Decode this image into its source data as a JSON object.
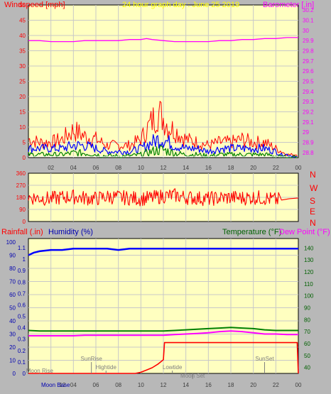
{
  "colors": {
    "background": "#b8b8b8",
    "plot_bg": "#ffffc0",
    "grid": "#c8c8c8",
    "red": "#ff0000",
    "blue": "#0000ff",
    "green": "#008000",
    "magenta": "#ff00ff",
    "white": "#ffffff",
    "title_yellow": "#ffff00",
    "axis_gray": "#808080",
    "text_dark": "#404040",
    "humidity_blue": "#0000b0",
    "temp_green": "#006000"
  },
  "chart_data": [
    {
      "type": "line",
      "title": "24 hour graph day : June 25 2019",
      "left_label": "Windspeed [mph]",
      "right_label": "Barometer [.in]",
      "x_ticks": [
        "02",
        "04",
        "06",
        "08",
        "10",
        "12",
        "14",
        "16",
        "18",
        "20",
        "22",
        "00"
      ],
      "y_left_ticks": [
        "50",
        "45",
        "40",
        "35",
        "30",
        "25",
        "20",
        "15",
        "10",
        "5",
        "0"
      ],
      "y_left_lim": [
        0,
        50
      ],
      "y_right_ticks": [
        "30.2",
        "30.1",
        "30",
        "29.9",
        "29.8",
        "29.7",
        "29.6",
        "29.5",
        "29.4",
        "29.3",
        "29.2",
        "29.1",
        "29",
        "28.9",
        "28.8"
      ],
      "y_right_lim": [
        28.75,
        30.25
      ],
      "grid": true,
      "series": [
        {
          "name": "Windspeed [mph]",
          "color": "#ff0000",
          "kind": "gust",
          "x": [
            0,
            1,
            2,
            3,
            4,
            5,
            6,
            7,
            8,
            9,
            10,
            11,
            11.5,
            12,
            12.5,
            13,
            14,
            15,
            16,
            17,
            18,
            19,
            20,
            21,
            22,
            22.5,
            23,
            24
          ],
          "y": [
            6,
            5,
            5,
            6,
            9,
            7,
            6,
            4,
            4,
            4,
            6,
            12,
            15,
            13,
            10,
            9,
            6,
            5,
            4,
            5,
            5,
            6,
            5,
            5,
            3,
            2,
            1,
            1
          ]
        },
        {
          "name": "Average wind",
          "color": "#0000ff",
          "kind": "average",
          "x": [
            0,
            1,
            2,
            3,
            4,
            5,
            6,
            7,
            8,
            9,
            10,
            11,
            11.5,
            12,
            12.5,
            13,
            14,
            15,
            16,
            17,
            18,
            19,
            20,
            21,
            22,
            22.5,
            23,
            24
          ],
          "y": [
            3,
            3,
            3,
            3,
            4,
            4,
            3,
            2,
            2,
            2,
            3,
            5,
            6,
            6,
            5,
            4,
            3,
            3,
            2,
            3,
            3,
            3,
            3,
            3,
            2,
            1,
            1,
            0
          ]
        },
        {
          "name": "Low wind",
          "color": "#008000",
          "kind": "low",
          "x": [
            0,
            1,
            2,
            3,
            4,
            5,
            6,
            7,
            8,
            9,
            10,
            11,
            11.5,
            12,
            12.5,
            13,
            14,
            15,
            16,
            17,
            18,
            19,
            20,
            21,
            22,
            22.5,
            23,
            24
          ],
          "y": [
            1,
            1,
            1,
            1,
            1.5,
            1.5,
            1,
            0.5,
            0.5,
            0.5,
            1,
            2,
            2.5,
            2.5,
            2,
            1.5,
            1,
            1,
            0.5,
            1,
            1,
            1,
            1,
            1,
            0.5,
            0,
            0,
            0
          ]
        },
        {
          "name": "Barometer [.in]",
          "color": "#ff00ff",
          "axis": "right",
          "x": [
            0,
            1,
            2,
            3,
            4,
            5,
            6,
            7,
            8,
            9,
            10,
            10.5,
            11,
            12,
            13,
            14,
            15,
            16,
            17,
            18,
            19,
            20,
            21,
            22,
            23,
            24
          ],
          "y": [
            29.9,
            29.9,
            29.89,
            29.89,
            29.89,
            29.9,
            29.9,
            29.9,
            29.9,
            29.91,
            29.91,
            29.92,
            29.91,
            29.9,
            29.89,
            29.89,
            29.89,
            29.89,
            29.9,
            29.9,
            29.91,
            29.91,
            29.92,
            29.92,
            29.93,
            29.93
          ]
        }
      ]
    },
    {
      "type": "line",
      "title": "",
      "y_ticks": [
        "360",
        "270",
        "180",
        "90",
        "0"
      ],
      "ylim": [
        0,
        360
      ],
      "compass_labels": [
        "N",
        "W",
        "S",
        "E",
        "N"
      ],
      "grid": true,
      "series": [
        {
          "name": "Wind direction",
          "color": "#ff0000",
          "x": [
            0,
            1,
            2,
            3,
            4,
            5,
            6,
            7,
            8,
            9,
            10,
            11,
            12,
            13,
            14,
            15,
            16,
            17,
            18,
            19,
            20,
            21,
            22,
            23,
            24
          ],
          "y": [
            180,
            175,
            170,
            180,
            185,
            175,
            170,
            185,
            180,
            175,
            170,
            175,
            190,
            195,
            180,
            175,
            170,
            175,
            180,
            175,
            180,
            175,
            160,
            170,
            175
          ]
        }
      ]
    },
    {
      "type": "line",
      "title": "",
      "labels": {
        "rainfall": "Rainfall (.in)",
        "humidity": "Humidity (%)",
        "temperature": "Temperature (°F)",
        "dewpoint": "Dew Point (°F)"
      },
      "x_ticks": [
        "02",
        "04",
        "06",
        "08",
        "10",
        "12",
        "14",
        "16",
        "18",
        "20",
        "22",
        "00"
      ],
      "humidity_ticks": [
        "100",
        "90",
        "80",
        "70",
        "60",
        "50",
        "40",
        "30",
        "20",
        "10",
        "0"
      ],
      "humidity_lim": [
        0,
        100
      ],
      "rain_ticks": [
        "1.1",
        "1",
        "0.9",
        "0.8",
        "0.7",
        "0.6",
        "0.5",
        "0.4",
        "0.3",
        "0.2",
        "0.1",
        "0"
      ],
      "rain_lim": [
        0,
        1.15
      ],
      "temp_ticks": [
        "140",
        "130",
        "120",
        "110",
        "100",
        "90",
        "80",
        "70",
        "60",
        "50",
        "40"
      ],
      "temp_lim": [
        35,
        145
      ],
      "grid": true,
      "series": [
        {
          "name": "Humidity (%)",
          "color": "#0000ff",
          "axis": "humidity",
          "x": [
            0,
            0.5,
            1,
            2,
            3,
            4,
            5,
            6,
            7,
            8,
            9,
            10,
            11,
            12,
            13,
            14,
            15,
            16,
            17,
            18,
            19,
            20,
            21,
            22,
            23,
            24
          ],
          "y": [
            90,
            92,
            93,
            94,
            94,
            95,
            95,
            95,
            95,
            94,
            95,
            95,
            95,
            95,
            95,
            95,
            95,
            95,
            95,
            95,
            95,
            95,
            95,
            95,
            95,
            95
          ]
        },
        {
          "name": "Temperature (°F)",
          "color": "#008000",
          "axis": "temp",
          "x": [
            0,
            1,
            2,
            3,
            4,
            5,
            6,
            7,
            8,
            9,
            10,
            11,
            12,
            13,
            14,
            15,
            16,
            17,
            18,
            19,
            20,
            21,
            22,
            23,
            24
          ],
          "y": [
            71,
            70.5,
            70.5,
            70.5,
            70.5,
            70.5,
            70.5,
            70.5,
            70.5,
            70.5,
            70.5,
            70.5,
            70.5,
            71,
            71.5,
            72,
            72.5,
            73,
            73.5,
            73,
            72.5,
            71.5,
            71,
            71,
            71
          ]
        },
        {
          "name": "Dew Point (°F)",
          "color": "#ff00ff",
          "axis": "temp",
          "x": [
            0,
            1,
            2,
            3,
            4,
            5,
            6,
            7,
            8,
            9,
            10,
            11,
            12,
            13,
            14,
            15,
            16,
            17,
            18,
            19,
            20,
            21,
            22,
            23,
            24
          ],
          "y": [
            66.5,
            66.5,
            66.5,
            66.5,
            66.5,
            67,
            67,
            67,
            67,
            67,
            67,
            67,
            67,
            67.5,
            68,
            68.5,
            69,
            70,
            70.5,
            70,
            69,
            68,
            68,
            67.5,
            67.5
          ]
        },
        {
          "name": "Rainfall (.in)",
          "color": "#ff0000",
          "axis": "rain",
          "x": [
            0,
            9.5,
            10,
            10.5,
            11,
            11.5,
            12,
            12.1,
            13,
            14,
            15,
            16,
            17,
            18,
            19,
            20,
            21,
            22,
            22.5,
            23,
            23.9,
            24
          ],
          "y": [
            0,
            0,
            0.01,
            0.03,
            0.05,
            0.08,
            0.12,
            0.27,
            0.27,
            0.27,
            0.27,
            0.27,
            0.27,
            0.27,
            0.27,
            0.27,
            0.27,
            0.27,
            0.27,
            0.27,
            0.27,
            0
          ]
        }
      ],
      "annotations": [
        {
          "text": "Moon Rise",
          "x": 1.0,
          "level": "bottom"
        },
        {
          "text": "SunRise",
          "x": 5.6,
          "level": "upper"
        },
        {
          "text": "Hightide",
          "x": 6.9,
          "level": "middle"
        },
        {
          "text": "Lowtide",
          "x": 12.8,
          "level": "middle"
        },
        {
          "text": "Moon Set",
          "x": 14.6,
          "level": "lower"
        },
        {
          "text": "SunSet",
          "x": 21.0,
          "level": "upper"
        }
      ],
      "bottom_labels": {
        "moon_phase": "Moon Base",
        "twelve": "12"
      }
    }
  ]
}
